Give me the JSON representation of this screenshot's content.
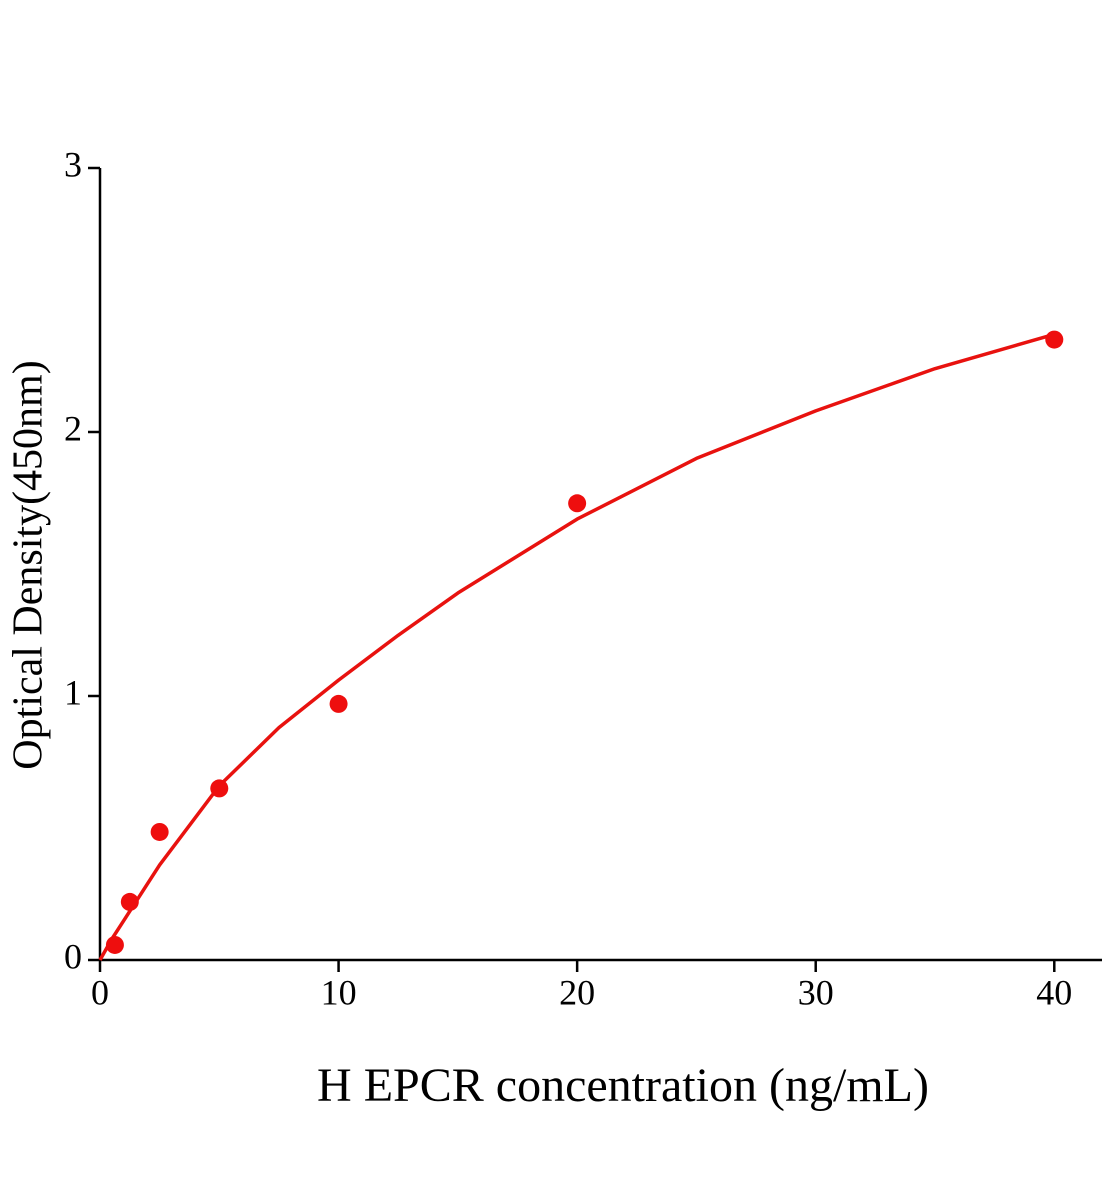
{
  "chart_data": {
    "type": "scatter",
    "xlabel": "H EPCR concentration (ng/mL)",
    "ylabel": "Optical Density(450nm)",
    "xlim": [
      0,
      42
    ],
    "ylim": [
      0,
      3
    ],
    "xticks": [
      0,
      10,
      20,
      30,
      40
    ],
    "yticks": [
      0,
      1,
      2,
      3
    ],
    "grid": false,
    "series": [
      {
        "type": "scatter",
        "color": "#ee0e0e",
        "x": [
          0.625,
          1.25,
          2.5,
          5,
          10,
          20,
          40
        ],
        "values": [
          0.057,
          0.22,
          0.485,
          0.65,
          0.97,
          1.73,
          2.35
        ]
      },
      {
        "type": "line",
        "color": "#e8120f",
        "x": [
          0,
          0.5,
          1,
          1.5,
          2.5,
          3.5,
          5,
          7.5,
          10,
          12.5,
          15,
          20,
          25,
          30,
          35,
          40
        ],
        "values": [
          0,
          0.08,
          0.15,
          0.22,
          0.36,
          0.48,
          0.66,
          0.88,
          1.06,
          1.23,
          1.39,
          1.67,
          1.9,
          2.08,
          2.24,
          2.37
        ]
      }
    ]
  }
}
